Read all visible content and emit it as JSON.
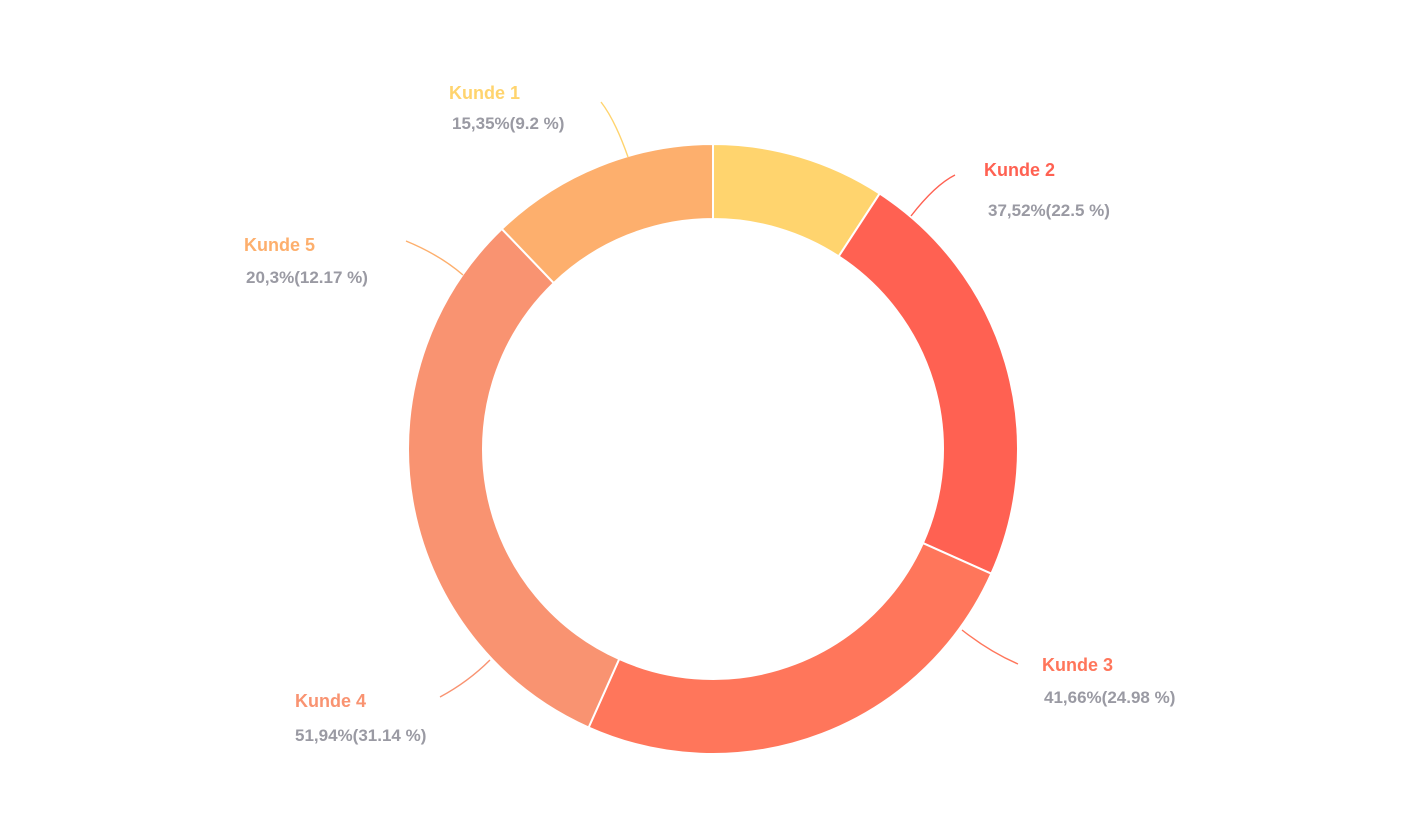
{
  "chart_data": {
    "type": "pie",
    "variant": "donut",
    "legend": "none",
    "slices": [
      {
        "label": "Kunde 1",
        "value_text": "15,35%(9.2 %)",
        "value": 15.35,
        "percent": 9.2,
        "color": "#FFD46E"
      },
      {
        "label": "Kunde 2",
        "value_text": "37,52%(22.5 %)",
        "value": 37.52,
        "percent": 22.5,
        "color": "#FF6152"
      },
      {
        "label": "Kunde 3",
        "value_text": "41,66%(24.98 %)",
        "value": 41.66,
        "percent": 24.98,
        "color": "#FF765B"
      },
      {
        "label": "Kunde 4",
        "value_text": "51,94%(31.14 %)",
        "value": 51.94,
        "percent": 31.14,
        "color": "#F99371"
      },
      {
        "label": "Kunde 5",
        "value_text": "20,3%(12.17 %)",
        "value": 20.3,
        "percent": 12.17,
        "color": "#FDAF6D"
      }
    ],
    "label_text_color": "#9A9AA3"
  }
}
